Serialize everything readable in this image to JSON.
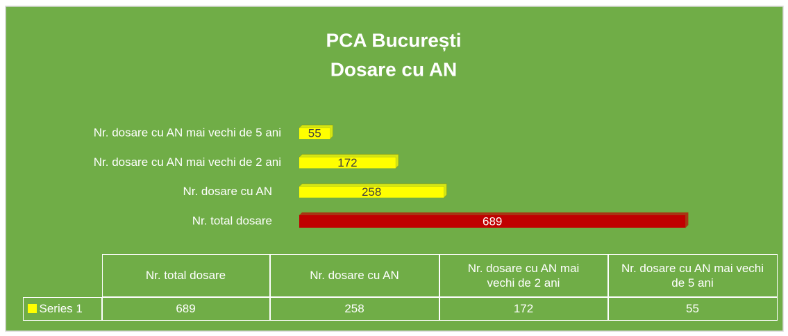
{
  "chart_data": {
    "type": "bar",
    "orientation": "horizontal",
    "title": "PCA București",
    "subtitle": "Dosare cu AN",
    "categories": [
      "Nr. total dosare",
      "Nr. dosare cu AN",
      "Nr. dosare cu AN mai vechi de 2 ani",
      "Nr. dosare cu AN mai vechi de 5 ani"
    ],
    "series": [
      {
        "name": "Series 1",
        "color": "#ffff00",
        "point_colors": [
          "#c00000",
          "#ffff00",
          "#ffff00",
          "#ffff00"
        ],
        "values": [
          689,
          258,
          172,
          55
        ]
      }
    ],
    "xlim": [
      0,
      800
    ],
    "data_table": true,
    "data_labels": true
  }
}
